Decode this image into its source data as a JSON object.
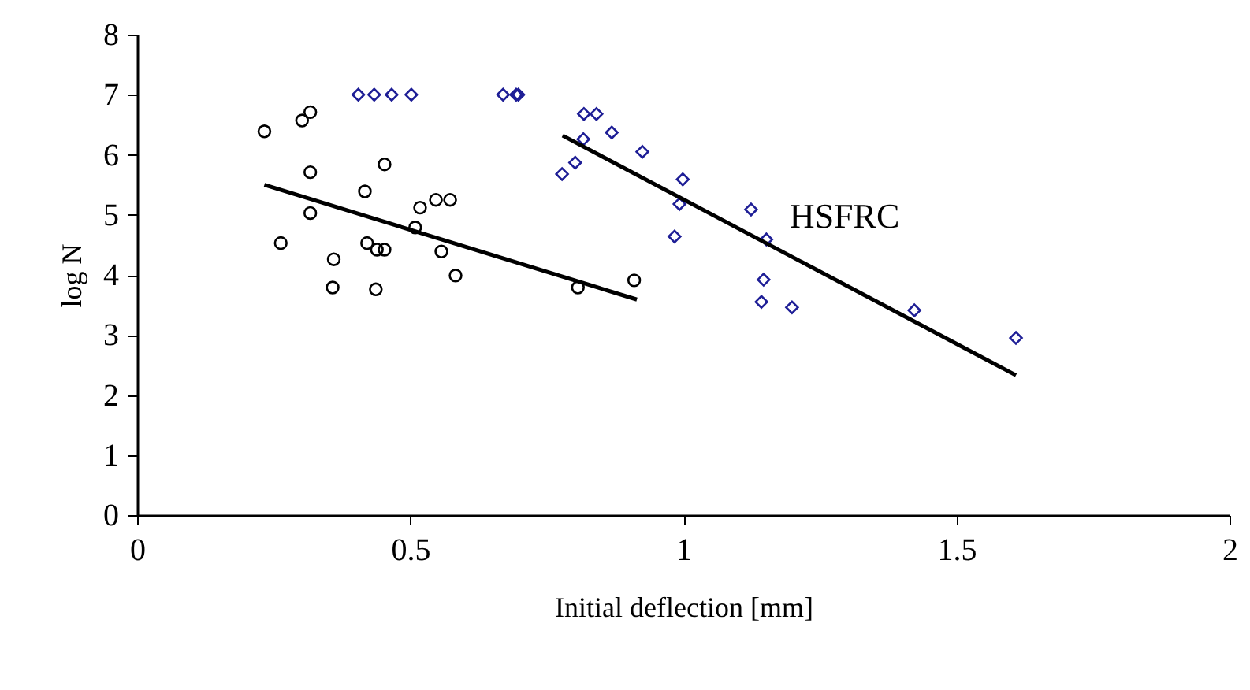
{
  "chart_data": {
    "type": "scatter",
    "xlabel": "Initial deflection [mm]",
    "ylabel": "log N",
    "xlim": [
      0,
      2
    ],
    "xticks": [
      0,
      0.5,
      1,
      1.5,
      2
    ],
    "ylim": [
      0,
      8
    ],
    "yticks": [
      0,
      1,
      2,
      3,
      4,
      5,
      6,
      7,
      8
    ],
    "grid": false,
    "series": [
      {
        "color": "#000000",
        "marker": "circle",
        "x": [
          0.233,
          0.302,
          0.317,
          0.317,
          0.317,
          0.263,
          0.36,
          0.358,
          0.417,
          0.421,
          0.439,
          0.453,
          0.437,
          0.453,
          0.509,
          0.518,
          0.547,
          0.573,
          0.557,
          0.583,
          0.807,
          0.91
        ],
        "values": [
          6.39,
          6.57,
          6.71,
          5.71,
          5.03,
          4.53,
          4.26,
          3.79,
          5.39,
          4.53,
          4.42,
          4.42,
          3.76,
          5.84,
          4.79,
          5.12,
          5.25,
          5.25,
          4.39,
          3.99,
          3.79,
          3.91
        ]
      },
      {
        "name": "HSFRC",
        "color": "#1e1e96",
        "marker": "diamond",
        "x": [
          0.405,
          0.434,
          0.466,
          0.502,
          0.67,
          0.694,
          0.698,
          0.818,
          0.841,
          0.817,
          0.869,
          0.925,
          0.802,
          0.778,
          0.999,
          0.993,
          0.984,
          1.124,
          1.152,
          1.147,
          1.143,
          1.199,
          1.423,
          1.609
        ],
        "values": [
          7,
          7,
          7,
          7,
          7,
          7,
          7,
          6.68,
          6.68,
          6.26,
          6.37,
          6.05,
          5.87,
          5.68,
          5.59,
          5.18,
          4.64,
          5.09,
          4.59,
          3.92,
          3.55,
          3.46,
          3.41,
          2.95
        ]
      },
      {
        "type": "line",
        "color": "#000000",
        "x": [
          0.233,
          0.915
        ],
        "values": [
          5.5,
          3.59
        ]
      },
      {
        "type": "line",
        "color": "#000000",
        "x": [
          0.779,
          1.609
        ],
        "values": [
          6.32,
          2.33
        ]
      }
    ]
  }
}
